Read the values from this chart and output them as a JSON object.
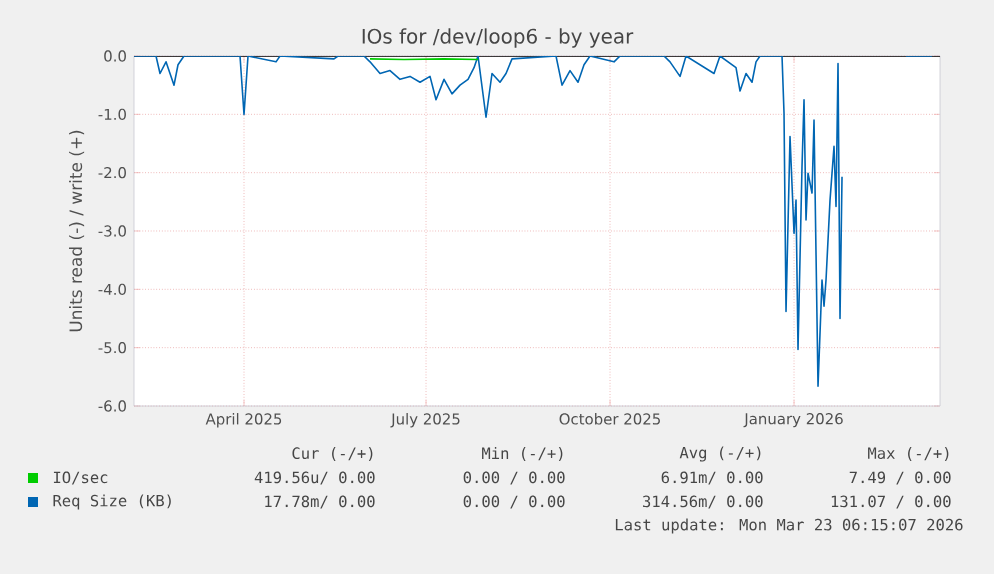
{
  "chart_data": {
    "type": "line",
    "title": "IOs for /dev/loop6 - by year",
    "ylabel": "Units read (-) / write (+)",
    "xlim": [
      "2025-02-05",
      "2026-03-15"
    ],
    "xticks": [
      {
        "value": "2025-04-01",
        "label": "April 2025"
      },
      {
        "value": "2025-07-01",
        "label": "July 2025"
      },
      {
        "value": "2025-10-01",
        "label": "October 2025"
      },
      {
        "value": "2026-01-01",
        "label": "January 2026"
      }
    ],
    "ylim": [
      -6,
      0
    ],
    "yticks": [
      {
        "value": -6,
        "label": "-6.0"
      },
      {
        "value": -5,
        "label": "-5.0"
      },
      {
        "value": -4,
        "label": "-4.0"
      },
      {
        "value": -3,
        "label": "-3.0"
      },
      {
        "value": -2,
        "label": "-2.0"
      },
      {
        "value": -1,
        "label": "-1.0"
      },
      {
        "value": 0,
        "label": "0.0"
      }
    ],
    "grid": true,
    "legend": "bottom",
    "ref_lines": [
      {
        "axis": "y",
        "value": 0,
        "color": "#000000"
      }
    ],
    "series": [
      {
        "name": "IO/sec",
        "color": "#00cc00",
        "x": [
          "2025-06-03",
          "2025-06-20",
          "2025-07-10",
          "2025-07-27"
        ],
        "values": [
          -0.05,
          -0.06,
          -0.05,
          -0.06
        ]
      },
      {
        "name": "Req Size (KB)",
        "color": "#0066b3",
        "x": [
          "2025-02-05",
          "2025-02-16",
          "2025-02-18",
          "2025-02-21",
          "2025-02-25",
          "2025-02-27",
          "2025-03-02",
          "2025-03-30",
          "2025-04-01",
          "2025-04-03",
          "2025-04-17",
          "2025-04-19",
          "2025-05-16",
          "2025-05-18",
          "2025-05-31",
          "2025-06-03",
          "2025-06-08",
          "2025-06-13",
          "2025-06-18",
          "2025-06-23",
          "2025-06-28",
          "2025-07-03",
          "2025-07-06",
          "2025-07-10",
          "2025-07-14",
          "2025-07-18",
          "2025-07-22",
          "2025-07-25",
          "2025-07-27",
          "2025-07-31",
          "2025-08-03",
          "2025-08-07",
          "2025-08-10",
          "2025-08-13",
          "2025-09-04",
          "2025-09-07",
          "2025-09-11",
          "2025-09-15",
          "2025-09-18",
          "2025-09-21",
          "2025-10-03",
          "2025-10-06",
          "2025-10-28",
          "2025-10-31",
          "2025-11-05",
          "2025-11-08",
          "2025-11-22",
          "2025-11-25",
          "2025-12-03",
          "2025-12-05",
          "2025-12-08",
          "2025-12-11",
          "2025-12-13",
          "2025-12-15",
          "2025-12-26",
          "2025-12-27",
          "2025-12-28",
          "2025-12-30",
          "2026-01-01",
          "2026-01-02",
          "2026-01-03",
          "2026-01-05",
          "2026-01-06",
          "2026-01-07",
          "2026-01-08",
          "2026-01-10",
          "2026-01-11",
          "2026-01-12",
          "2026-01-13",
          "2026-01-15",
          "2026-01-16",
          "2026-01-17",
          "2026-01-19",
          "2026-01-21",
          "2026-01-22",
          "2026-01-23",
          "2026-01-24",
          "2026-01-25",
          "2026-01-26",
          "2026-02-26",
          "2026-03-11"
        ],
        "values": [
          0,
          0,
          -0.3,
          -0.1,
          -0.5,
          -0.15,
          0,
          0,
          -1.0,
          0,
          -0.1,
          0,
          -0.05,
          0,
          0,
          -0.1,
          -0.3,
          -0.25,
          -0.4,
          -0.35,
          -0.45,
          -0.35,
          -0.75,
          -0.4,
          -0.65,
          -0.5,
          -0.4,
          -0.2,
          0,
          -1.05,
          -0.3,
          -0.45,
          -0.3,
          -0.05,
          0,
          -0.5,
          -0.25,
          -0.45,
          -0.15,
          0,
          -0.1,
          0,
          0,
          -0.1,
          -0.35,
          0,
          -0.3,
          0,
          -0.2,
          -0.6,
          -0.3,
          -0.45,
          -0.1,
          0,
          0,
          -0.98,
          -4.38,
          -1.38,
          -3.04,
          -2.47,
          -5.03,
          -1.89,
          -0.75,
          -2.81,
          -2.01,
          -2.35,
          -1.1,
          -3.38,
          -5.66,
          -3.84,
          -4.29,
          -3.84,
          -2.47,
          -1.55,
          -2.58,
          -0.13,
          -4.5,
          -2.07,
          null,
          0,
          0
        ]
      }
    ],
    "annotations": [
      "Cur (-/+)",
      "Min (-/+)",
      "Avg (-/+)",
      "Max (-/+)",
      "419.56u/ 0.00",
      "0.00 / 0.00",
      "6.91m/ 0.00",
      "7.49 / 0.00",
      "17.78m/ 0.00",
      "0.00 / 0.00",
      "314.56m/ 0.00",
      "131.07 / 0.00",
      "Last update: Mon Mar 23 06:15:07 2026"
    ]
  }
}
